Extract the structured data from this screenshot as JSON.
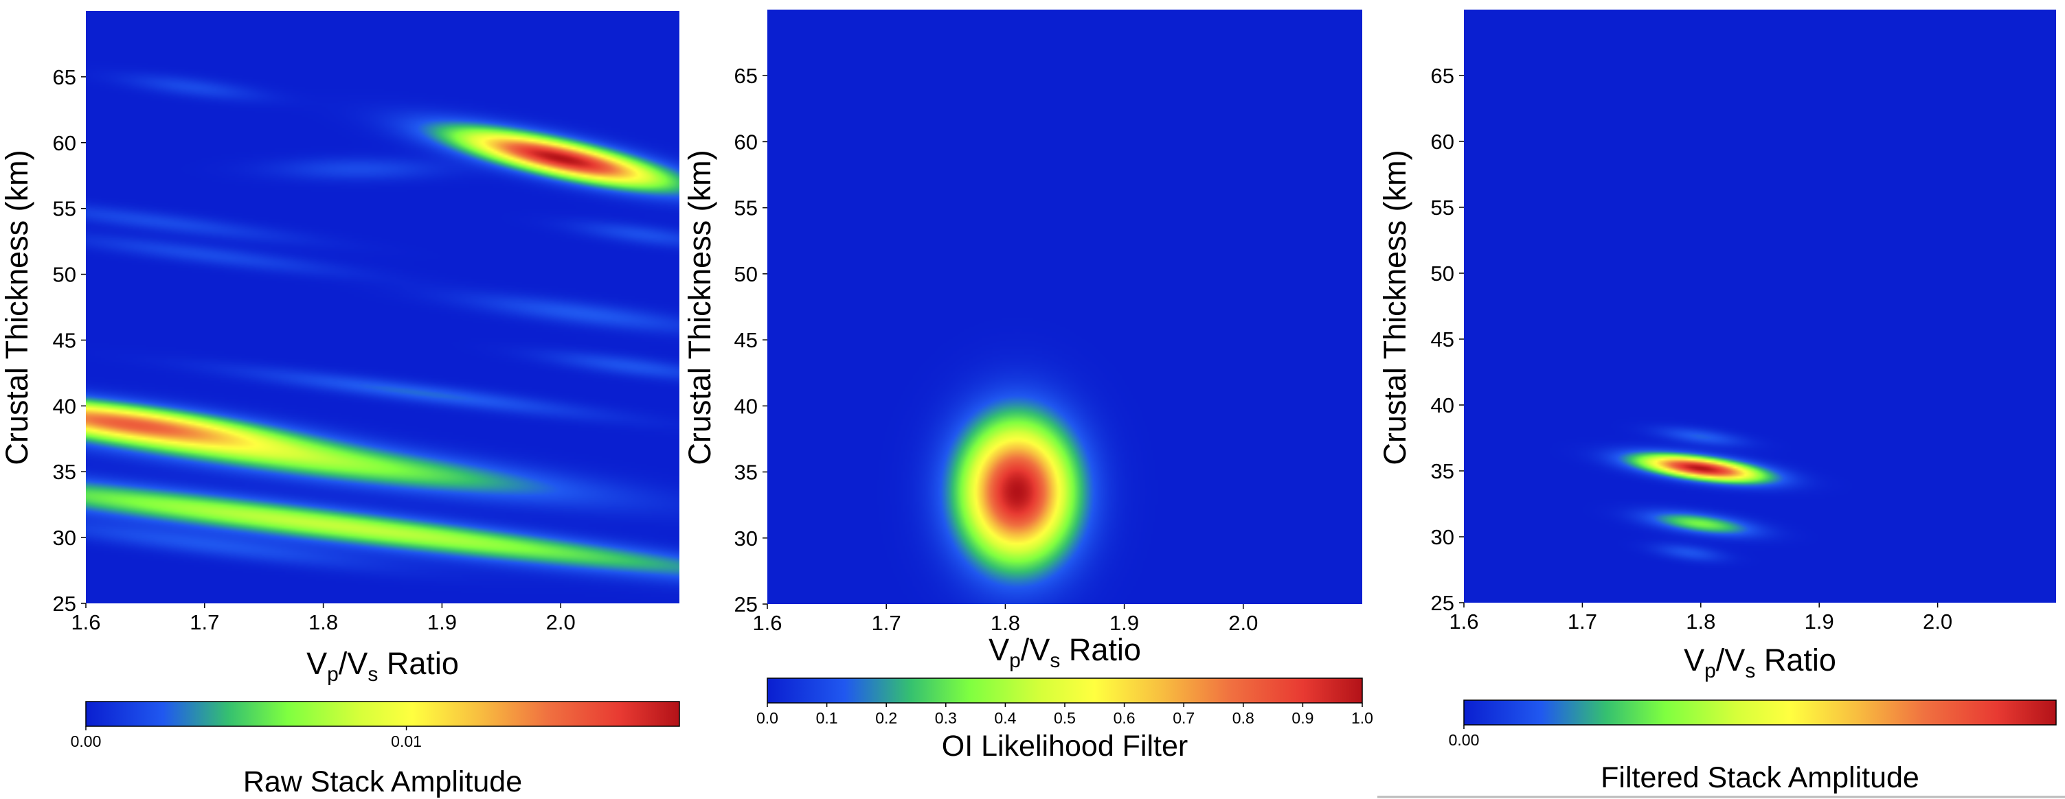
{
  "chart_data": [
    {
      "type": "heatmap",
      "title": "",
      "xlabel": "Vp/Vs Ratio",
      "xlabel_base": "V",
      "xlabel_sub1": "p",
      "xlabel_mid": "/V",
      "xlabel_sub2": "s",
      "xlabel_tail": " Ratio",
      "ylabel": "Crustal Thickness (km)",
      "xlim": [
        1.6,
        2.1
      ],
      "ylim": [
        25,
        70
      ],
      "xticks": [
        "1.6",
        "1.7",
        "1.8",
        "1.9",
        "2.0"
      ],
      "yticks": [
        "25",
        "30",
        "35",
        "40",
        "45",
        "50",
        "55",
        "60",
        "65"
      ],
      "colorbar_label": "Raw Stack Amplitude",
      "colorbar_ticks": [
        {
          "label": "0.00",
          "frac": 0.0
        },
        {
          "label": "0.01",
          "frac": 0.54
        }
      ],
      "features": [
        {
          "x": 2.0,
          "y": 58.8,
          "slope": -19,
          "sx": 0.06,
          "sy": 0.9,
          "amp": 1.0
        },
        {
          "x": 1.63,
          "y": 38.8,
          "slope": -11,
          "sx": 0.09,
          "sy": 0.9,
          "amp": 0.72
        },
        {
          "x": 1.8,
          "y": 35.8,
          "slope": -11,
          "sx": 0.14,
          "sy": 1.0,
          "amp": 0.36
        },
        {
          "x": 1.75,
          "y": 31.5,
          "slope": -11,
          "sx": 0.22,
          "sy": 0.9,
          "amp": 0.34
        },
        {
          "x": 1.95,
          "y": 29.5,
          "slope": -11,
          "sx": 0.2,
          "sy": 0.7,
          "amp": 0.14
        },
        {
          "x": 1.7,
          "y": 29.5,
          "slope": -11,
          "sx": 0.1,
          "sy": 0.6,
          "amp": 0.12
        },
        {
          "x": 1.88,
          "y": 41.0,
          "slope": -11,
          "sx": 0.1,
          "sy": 0.5,
          "amp": 0.15
        },
        {
          "x": 1.7,
          "y": 51.5,
          "slope": -11,
          "sx": 0.08,
          "sy": 0.5,
          "amp": 0.1
        },
        {
          "x": 1.66,
          "y": 54.0,
          "slope": -11,
          "sx": 0.08,
          "sy": 0.5,
          "amp": 0.1
        },
        {
          "x": 2.02,
          "y": 47.0,
          "slope": -11,
          "sx": 0.07,
          "sy": 0.6,
          "amp": 0.13
        },
        {
          "x": 2.06,
          "y": 43.0,
          "slope": -11,
          "sx": 0.05,
          "sy": 0.5,
          "amp": 0.12
        },
        {
          "x": 1.83,
          "y": 58.0,
          "slope": 0,
          "sx": 0.05,
          "sy": 0.6,
          "amp": 0.1
        },
        {
          "x": 2.07,
          "y": 53.0,
          "slope": -11,
          "sx": 0.04,
          "sy": 0.5,
          "amp": 0.11
        },
        {
          "x": 1.69,
          "y": 64.2,
          "slope": -11,
          "sx": 0.04,
          "sy": 0.5,
          "amp": 0.1
        }
      ]
    },
    {
      "type": "heatmap",
      "title": "",
      "xlabel": "Vp/Vs Ratio",
      "xlabel_base": "V",
      "xlabel_sub1": "p",
      "xlabel_mid": "/V",
      "xlabel_sub2": "s",
      "xlabel_tail": " Ratio",
      "ylabel": "Crustal Thickness (km)",
      "xlim": [
        1.6,
        2.1
      ],
      "ylim": [
        25,
        70
      ],
      "xticks": [
        "1.6",
        "1.7",
        "1.8",
        "1.9",
        "2.0"
      ],
      "yticks": [
        "25",
        "30",
        "35",
        "40",
        "45",
        "50",
        "55",
        "60",
        "65"
      ],
      "colorbar_label": "OI Likelihood Filter",
      "colorbar_ticks": [
        {
          "label": "0.0",
          "frac": 0.0
        },
        {
          "label": "0.1",
          "frac": 0.1
        },
        {
          "label": "0.2",
          "frac": 0.2
        },
        {
          "label": "0.3",
          "frac": 0.3
        },
        {
          "label": "0.4",
          "frac": 0.4
        },
        {
          "label": "0.5",
          "frac": 0.5
        },
        {
          "label": "0.6",
          "frac": 0.6
        },
        {
          "label": "0.7",
          "frac": 0.7
        },
        {
          "label": "0.8",
          "frac": 0.8
        },
        {
          "label": "0.9",
          "frac": 0.9
        },
        {
          "label": "1.0",
          "frac": 1.0
        }
      ],
      "features": [
        {
          "x": 1.81,
          "y": 33.5,
          "slope": 0,
          "sx": 0.032,
          "sy": 3.6,
          "amp": 1.0
        }
      ]
    },
    {
      "type": "heatmap",
      "title": "",
      "xlabel": "Vp/Vs Ratio",
      "xlabel_base": "V",
      "xlabel_sub1": "p",
      "xlabel_mid": "/V",
      "xlabel_sub2": "s",
      "xlabel_tail": " Ratio",
      "ylabel": "Crustal Thickness (km)",
      "xlim": [
        1.6,
        2.1
      ],
      "ylim": [
        25,
        70
      ],
      "xticks": [
        "1.6",
        "1.7",
        "1.8",
        "1.9",
        "2.0"
      ],
      "yticks": [
        "25",
        "30",
        "35",
        "40",
        "45",
        "50",
        "55",
        "60",
        "65"
      ],
      "colorbar_label": "Filtered Stack Amplitude",
      "colorbar_ticks": [
        {
          "label": "0.00",
          "frac": 0.0
        }
      ],
      "features": [
        {
          "x": 1.8,
          "y": 35.2,
          "slope": -11,
          "sx": 0.035,
          "sy": 0.55,
          "amp": 1.0
        },
        {
          "x": 1.8,
          "y": 31.0,
          "slope": -11,
          "sx": 0.03,
          "sy": 0.5,
          "amp": 0.33
        },
        {
          "x": 1.8,
          "y": 37.6,
          "slope": -11,
          "sx": 0.025,
          "sy": 0.4,
          "amp": 0.14
        },
        {
          "x": 1.79,
          "y": 28.8,
          "slope": -11,
          "sx": 0.02,
          "sy": 0.4,
          "amp": 0.12
        }
      ]
    }
  ]
}
